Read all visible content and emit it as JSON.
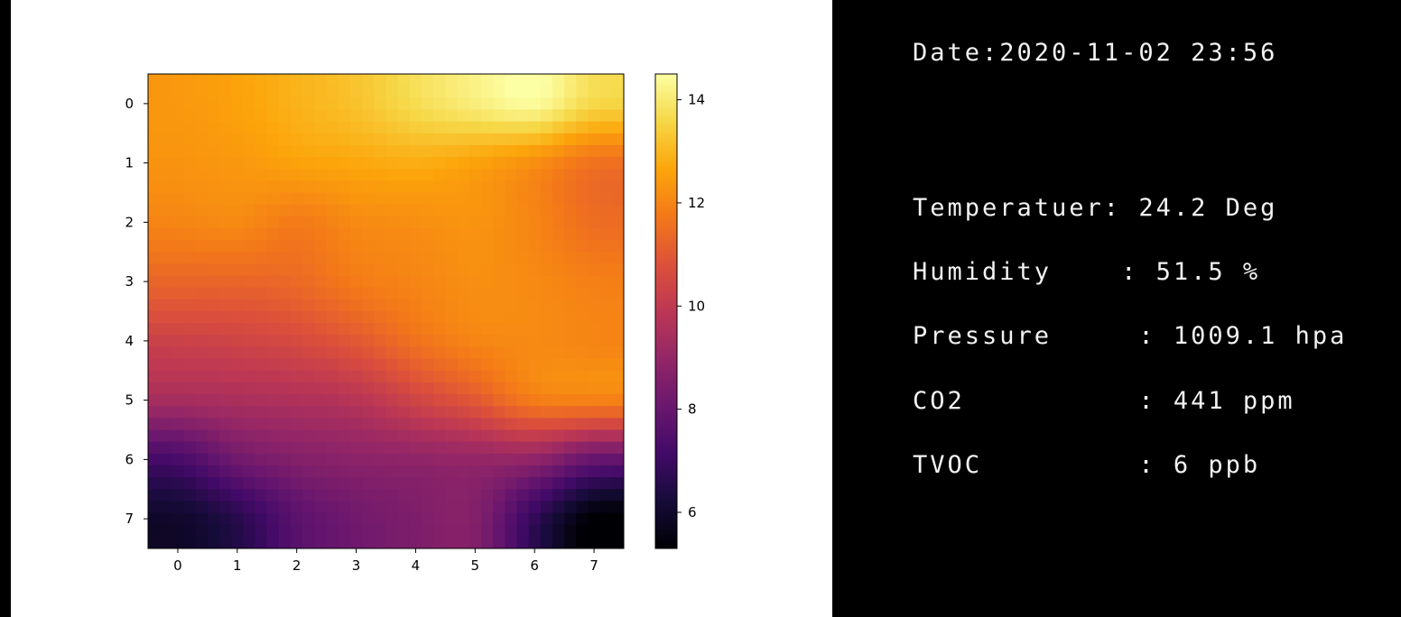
{
  "chart_data": {
    "type": "heatmap",
    "title": "",
    "xlabel": "",
    "ylabel": "",
    "colormap": "inferno",
    "x_ticks": [
      "0",
      "1",
      "2",
      "3",
      "4",
      "5",
      "6",
      "7"
    ],
    "y_ticks": [
      "0",
      "1",
      "2",
      "3",
      "4",
      "5",
      "6",
      "7"
    ],
    "xlim": [
      -0.5,
      7.5
    ],
    "ylim": [
      7.5,
      -0.5
    ],
    "interpolation": "bicubic",
    "values": [
      [
        12.4,
        12.6,
        12.9,
        13.2,
        13.7,
        14.1,
        14.4,
        13.6
      ],
      [
        12.3,
        12.4,
        12.6,
        12.7,
        12.8,
        12.6,
        12.2,
        11.6
      ],
      [
        12.0,
        12.1,
        11.8,
        12.1,
        12.2,
        12.3,
        12.0,
        11.5
      ],
      [
        11.3,
        11.3,
        11.4,
        11.8,
        12.0,
        12.2,
        12.1,
        11.9
      ],
      [
        10.3,
        10.4,
        10.6,
        11.0,
        11.6,
        12.0,
        12.1,
        12.0
      ],
      [
        9.4,
        9.5,
        9.6,
        9.8,
        10.4,
        11.0,
        11.8,
        11.9
      ],
      [
        7.3,
        8.2,
        8.6,
        8.8,
        8.9,
        9.0,
        8.9,
        8.0
      ],
      [
        6.0,
        6.6,
        7.7,
        8.2,
        8.5,
        8.6,
        6.8,
        5.3
      ]
    ],
    "colorbar": {
      "vmin": 5.3,
      "vmax": 14.5,
      "ticks": [
        6,
        8,
        10,
        12,
        14
      ],
      "tick_labels": [
        "6",
        "8",
        "10",
        "12",
        "14"
      ]
    }
  },
  "sensor_panel": {
    "date_line": "Date:2020-11-02 23:56",
    "lines": [
      "Temperatuer: 24.2 Deg",
      "Humidity    : 51.5 %",
      "Pressure     : 1009.1 hpa",
      "CO2          : 441 ppm",
      "TVOC         : 6 ppb"
    ]
  },
  "colors": {
    "plot_background": "#ffffff",
    "panel_background": "#000000",
    "panel_text": "#f2f2f2"
  }
}
